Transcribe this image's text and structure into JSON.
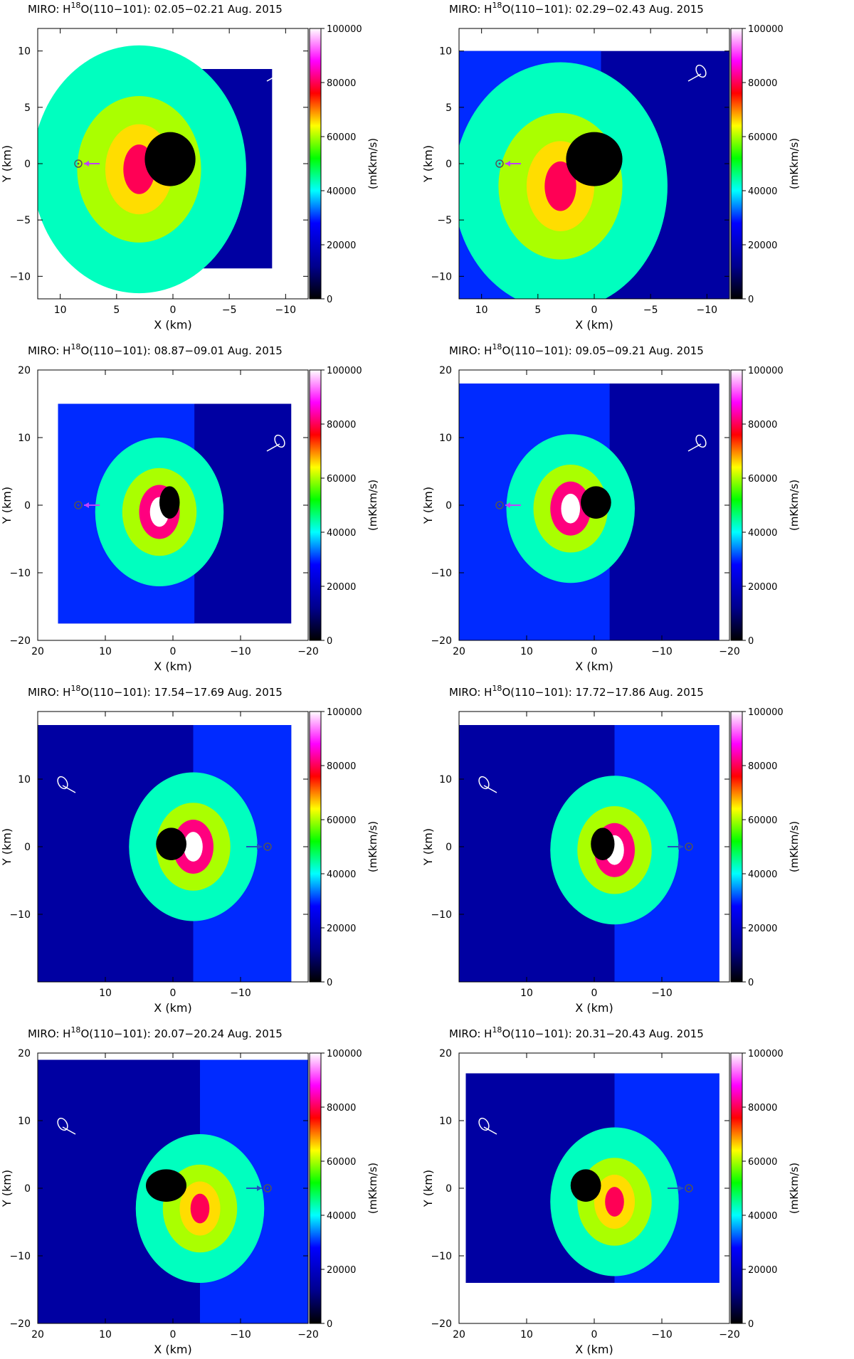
{
  "figure": {
    "colorbar": {
      "ticks": [
        "0",
        "20000",
        "40000",
        "60000",
        "80000",
        "100000"
      ],
      "range": [
        0,
        100000
      ],
      "unit_label": "(mKkm/s)",
      "colors": [
        "#000000",
        "#000080",
        "#0000ff",
        "#00ffff",
        "#00ff00",
        "#ffff00",
        "#ff0000",
        "#ff00ff",
        "#ffffff"
      ]
    },
    "x_axis_label": "X (km)",
    "y_axis_label": "Y (km)"
  },
  "chart_data": [
    {
      "type": "heatmap",
      "title": "MIRO: H218O(110−101): 02.05−02.21 Aug. 2015",
      "title_prefix": "MIRO: H",
      "title_sup": "18",
      "title_suffix": "O(110−101): 02.05−02.21 Aug. 2015",
      "xlabel": "X (km)",
      "ylabel": "Y (km)",
      "xlim": [
        12,
        -12
      ],
      "ylim": [
        -12,
        12
      ],
      "xticks": [
        10,
        5,
        0,
        -5,
        -10
      ],
      "yticks": [
        -10,
        -5,
        0,
        5,
        10
      ],
      "data_extent": {
        "x": [
          8.4,
          -8.8
        ],
        "y": [
          -9.3,
          8.4
        ]
      },
      "peak": {
        "x": 3,
        "y": -0.5,
        "level": 80000
      },
      "nucleus_x": [
        2.5,
        -2.0
      ],
      "sun_direction": "left"
    },
    {
      "type": "heatmap",
      "title": "MIRO: H218O(110−101): 02.29−02.43 Aug. 2015",
      "title_prefix": "MIRO: H",
      "title_sup": "18",
      "title_suffix": "O(110−101): 02.29−02.43 Aug. 2015",
      "xlabel": "X (km)",
      "ylabel": "Y (km)",
      "xlim": [
        12,
        -12
      ],
      "ylim": [
        -12,
        12
      ],
      "xticks": [
        10,
        5,
        0,
        -5,
        -10
      ],
      "yticks": [
        -10,
        -5,
        0,
        5,
        10
      ],
      "data_extent": {
        "x": [
          12,
          -12
        ],
        "y": [
          -12,
          10
        ]
      },
      "peak": {
        "x": 3,
        "y": -2,
        "level": 80000
      },
      "nucleus_x": [
        2.5,
        -2.5
      ],
      "sun_direction": "left"
    },
    {
      "type": "heatmap",
      "title": "MIRO: H218O(110−101): 08.87−09.01 Aug. 2015",
      "title_prefix": "MIRO: H",
      "title_sup": "18",
      "title_suffix": "O(110−101): 08.87−09.01 Aug. 2015",
      "xlabel": "X (km)",
      "ylabel": "Y (km)",
      "xlim": [
        20,
        -20
      ],
      "ylim": [
        -20,
        20
      ],
      "xticks": [
        20,
        10,
        0,
        -10,
        -20
      ],
      "yticks": [
        -20,
        -10,
        0,
        10,
        20
      ],
      "data_extent": {
        "x": [
          17,
          -17.5
        ],
        "y": [
          -17.5,
          15
        ]
      },
      "peak": {
        "x": 2,
        "y": -1,
        "level": 100000
      },
      "nucleus_x": [
        2,
        -1
      ],
      "sun_direction": "left"
    },
    {
      "type": "heatmap",
      "title": "MIRO: H218O(110−101): 09.05−09.21 Aug. 2015",
      "title_prefix": "MIRO: H",
      "title_sup": "18",
      "title_suffix": "O(110−101): 09.05−09.21 Aug. 2015",
      "xlabel": "X (km)",
      "ylabel": "Y (km)",
      "xlim": [
        20,
        -20
      ],
      "ylim": [
        -20,
        20
      ],
      "xticks": [
        20,
        10,
        0,
        -10,
        -20
      ],
      "yticks": [
        -20,
        -10,
        0,
        10,
        20
      ],
      "data_extent": {
        "x": [
          20,
          -18.5
        ],
        "y": [
          -20,
          18
        ]
      },
      "peak": {
        "x": 3.5,
        "y": -0.5,
        "level": 100000
      },
      "nucleus_x": [
        2,
        -2.5
      ],
      "sun_direction": "left"
    },
    {
      "type": "heatmap",
      "title": "MIRO: H218O(110−101): 17.54−17.69 Aug. 2015",
      "title_prefix": "MIRO: H",
      "title_sup": "18",
      "title_suffix": "O(110−101): 17.54−17.69 Aug. 2015",
      "xlabel": "X (km)",
      "ylabel": "Y (km)",
      "xlim": [
        20,
        -20
      ],
      "ylim": [
        -20,
        20
      ],
      "xticks": [
        10,
        0,
        -10
      ],
      "yticks": [
        -10,
        0,
        10
      ],
      "data_extent": {
        "x": [
          20,
          -17.5
        ],
        "y": [
          -20,
          18
        ]
      },
      "peak": {
        "x": -3,
        "y": 0,
        "level": 100000
      },
      "nucleus_x": [
        2.5,
        -2.0
      ],
      "sun_direction": "right"
    },
    {
      "type": "heatmap",
      "title": "MIRO: H218O(110−101): 17.72−17.86 Aug. 2015",
      "title_prefix": "MIRO: H",
      "title_sup": "18",
      "title_suffix": "O(110−101): 17.72−17.86 Aug. 2015",
      "xlabel": "X (km)",
      "ylabel": "Y (km)",
      "xlim": [
        20,
        -20
      ],
      "ylim": [
        -20,
        20
      ],
      "xticks": [
        10,
        0,
        -10
      ],
      "yticks": [
        -10,
        0,
        10
      ],
      "data_extent": {
        "x": [
          20,
          -18.5
        ],
        "y": [
          -20,
          18
        ]
      },
      "peak": {
        "x": -3,
        "y": -0.5,
        "level": 100000
      },
      "nucleus_x": [
        0.5,
        -3
      ],
      "sun_direction": "right"
    },
    {
      "type": "heatmap",
      "title": "MIRO: H218O(110−101): 20.07−20.24 Aug. 2015",
      "title_prefix": "MIRO: H",
      "title_sup": "18",
      "title_suffix": "O(110−101): 20.07−20.24 Aug. 2015",
      "xlabel": "X (km)",
      "ylabel": "Y (km)",
      "xlim": [
        20,
        -20
      ],
      "ylim": [
        -20,
        20
      ],
      "xticks": [
        20,
        10,
        0,
        -10,
        -20
      ],
      "yticks": [
        -20,
        -10,
        0,
        10,
        20
      ],
      "data_extent": {
        "x": [
          20,
          -20
        ],
        "y": [
          -20,
          19
        ]
      },
      "peak": {
        "x": -4,
        "y": -3,
        "level": 80000
      },
      "nucleus_x": [
        4,
        -2.0
      ],
      "sun_direction": "right"
    },
    {
      "type": "heatmap",
      "title": "MIRO: H218O(110−101): 20.31−20.43 Aug. 2015",
      "title_prefix": "MIRO: H",
      "title_sup": "18",
      "title_suffix": "O(110−101): 20.31−20.43 Aug. 2015",
      "xlabel": "X (km)",
      "ylabel": "Y (km)",
      "xlim": [
        20,
        -20
      ],
      "ylim": [
        -20,
        20
      ],
      "xticks": [
        20,
        10,
        0,
        -10,
        -20
      ],
      "yticks": [
        -20,
        -10,
        0,
        10,
        20
      ],
      "data_extent": {
        "x": [
          19,
          -18.5
        ],
        "y": [
          -14,
          17
        ]
      },
      "peak": {
        "x": -3,
        "y": -2,
        "level": 80000
      },
      "nucleus_x": [
        3.5,
        -1
      ],
      "sun_direction": "right"
    }
  ]
}
